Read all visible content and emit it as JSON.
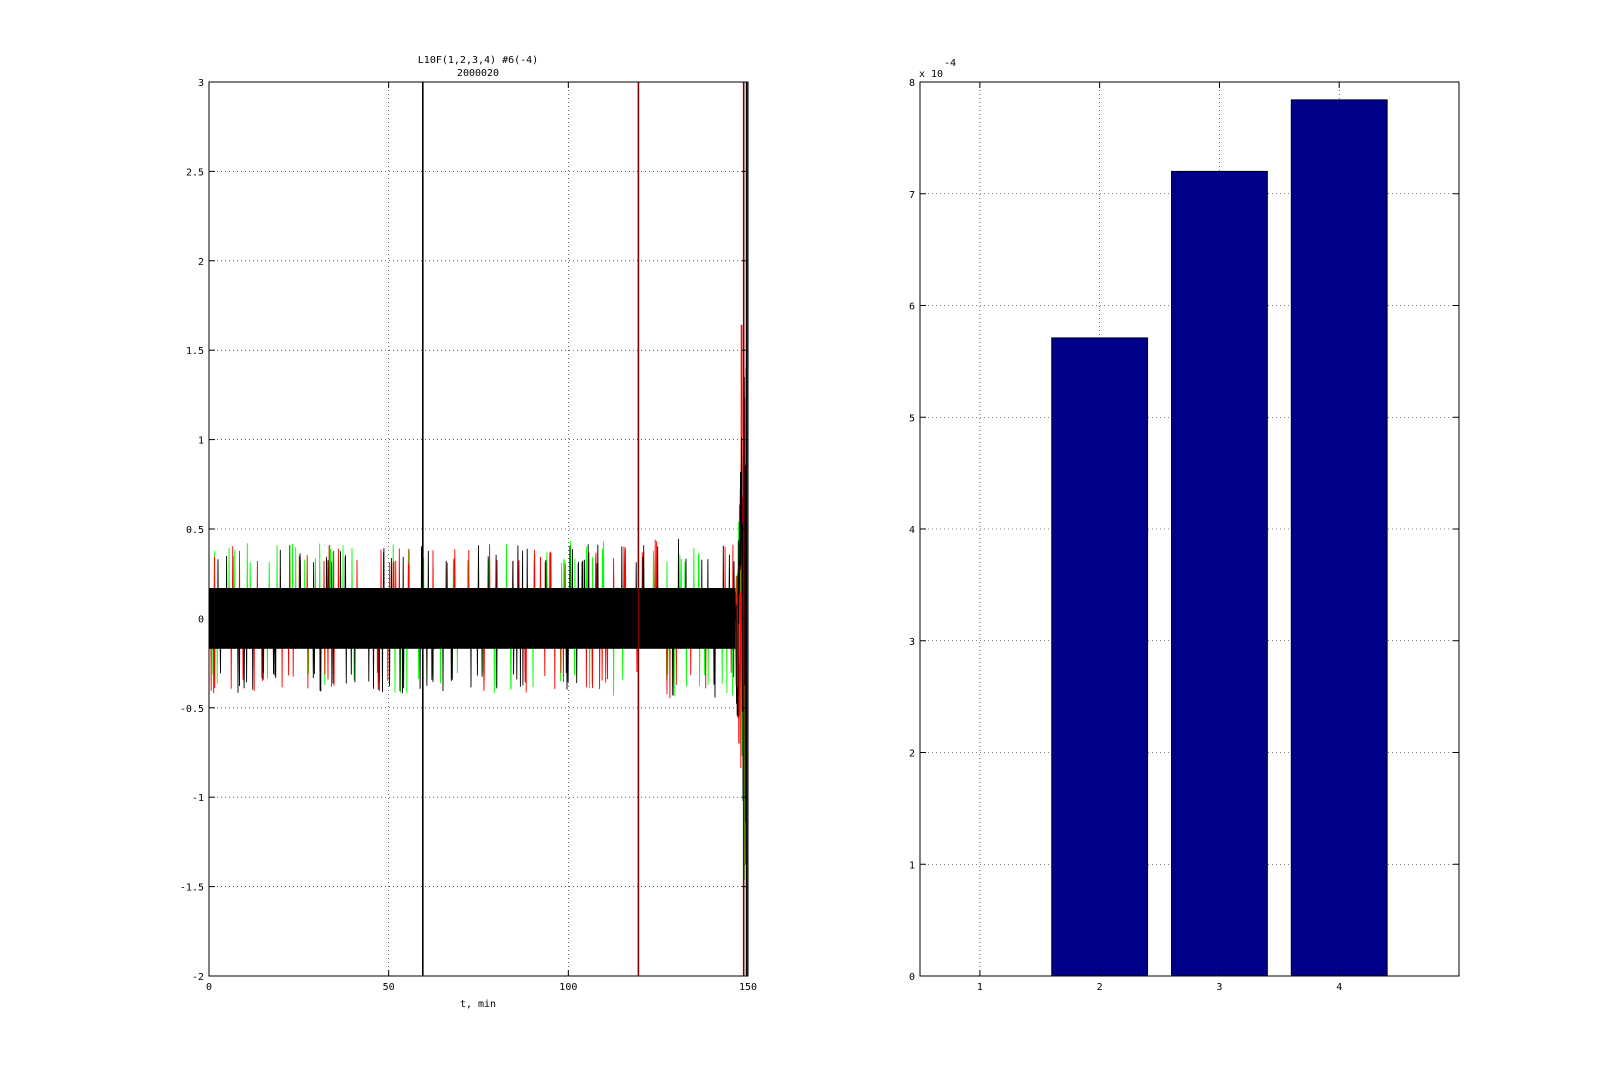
{
  "chart_data": [
    {
      "type": "line",
      "title": "L10F(1,2,3,4) #6(-4)",
      "subtitle": "2000020",
      "xlabel": "t, min",
      "ylabel": "",
      "xlim": [
        0,
        150
      ],
      "ylim": [
        -2,
        3
      ],
      "xticks": [
        "0",
        "50",
        "100",
        "150"
      ],
      "yticks": [
        "-2",
        "-1.5",
        "-1",
        "-0.5",
        "0",
        "0.5",
        "1",
        "1.5",
        "2",
        "2.5",
        "3"
      ],
      "grid": true,
      "series_colors": [
        "#00ff00",
        "#ff0000",
        "#000000"
      ],
      "noise": {
        "baseline_amplitude": 0.17,
        "typical_peak": 0.3,
        "late_peak": 0.45,
        "spike_max": 1.64,
        "spike_min": -1.46
      },
      "vertical_lines": [
        {
          "x": 59.5,
          "color": "#000000"
        },
        {
          "x": 119.5,
          "color": "#800000"
        },
        {
          "x": 148.8,
          "color": "#800000"
        },
        {
          "x": 149.6,
          "color": "#000000"
        }
      ]
    },
    {
      "type": "bar",
      "title": "",
      "xlabel": "",
      "ylabel": "",
      "categories": [
        "1",
        "2",
        "3",
        "4"
      ],
      "values": [
        0,
        0.000571,
        0.00072,
        0.000784
      ],
      "ylim": [
        0,
        0.0008
      ],
      "yticks": [
        "0",
        "1",
        "2",
        "3",
        "4",
        "5",
        "6",
        "7",
        "8"
      ],
      "scale_label": "x 10",
      "scale_exponent": "-4",
      "grid": true,
      "bar_color": "#00008b"
    }
  ]
}
